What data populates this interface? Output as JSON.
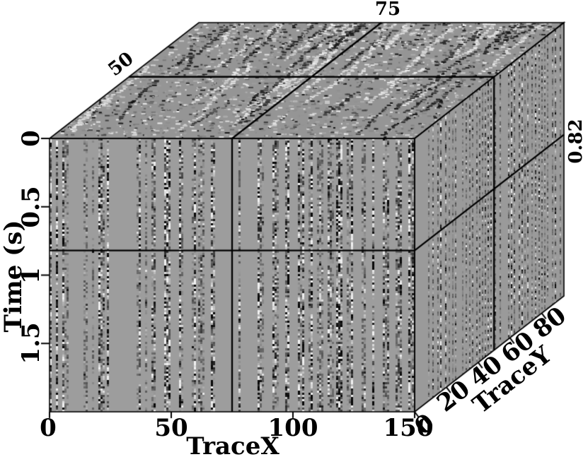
{
  "figure": {
    "time_axis": {
      "title": "Time (s)",
      "ticks": [
        "0",
        "0.5",
        "1",
        "1.5"
      ]
    },
    "tracex_axis": {
      "title": "TraceX",
      "ticks": [
        "0",
        "50",
        "100",
        "150"
      ]
    },
    "tracey_axis": {
      "title": "TraceY",
      "ticks": [
        "0",
        "20",
        "40",
        "60",
        "80"
      ]
    },
    "frame_labels": {
      "tracex": "75",
      "tracey": "50",
      "time": "0.82"
    },
    "colors": {
      "background": "#ffffff",
      "face_gray": "#9b9b9b",
      "line": "#000000"
    }
  },
  "chart_data": {
    "type": "heatmap",
    "title": "",
    "description": "3D seismic data cube (grayscale volume display). Front face: TraceX vs Time slice; top face: TraceX vs TraceY time slice; right face: TraceY vs Time slice. Content is noise-like seismic trace amplitude; individual sample values are not readable. Black crosshair frame lines mark the displayed slice positions.",
    "axes": {
      "tracex": {
        "label": "TraceX",
        "range": [
          0,
          150
        ],
        "ticks": [
          0,
          50,
          100,
          150
        ]
      },
      "tracey": {
        "label": "TraceY",
        "range": [
          0,
          94
        ],
        "ticks": [
          0,
          20,
          40,
          60,
          80
        ]
      },
      "time": {
        "label": "Time (s)",
        "range": [
          0,
          2.0
        ],
        "ticks": [
          0,
          0.5,
          1,
          1.5
        ],
        "direction": "down"
      }
    },
    "slice_positions": {
      "time_s": 0.82,
      "tracex": 75,
      "tracey": 50
    },
    "colormap": "grayscale",
    "grid": false,
    "legend_position": "none"
  }
}
